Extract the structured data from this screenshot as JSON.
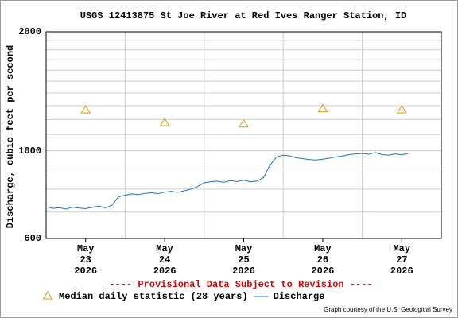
{
  "chart_data": {
    "type": "line",
    "title": "USGS 12413875 St Joe River at Red Ives Ranger Station, ID",
    "ylabel": "Discharge, cubic feet per second",
    "note": "---- Provisional Data Subject to Revision ----",
    "credit": "Graph courtesy of the U.S. Geological Survey",
    "log_y": true,
    "grid": true,
    "ylim": [
      600,
      2000
    ],
    "yticks": [
      600,
      1000,
      2000
    ],
    "y_minor_ticks": [
      700,
      800,
      900,
      1100,
      1200,
      1300,
      1400,
      1500,
      1600,
      1700,
      1800,
      1900
    ],
    "xlim": [
      "2026-05-23T00:00",
      "2026-05-28T00:00"
    ],
    "xticks": [
      {
        "value": "2026-05-23T12:00",
        "label": [
          "May",
          "23",
          "2026"
        ]
      },
      {
        "value": "2026-05-24T12:00",
        "label": [
          "May",
          "24",
          "2026"
        ]
      },
      {
        "value": "2026-05-25T12:00",
        "label": [
          "May",
          "25",
          "2026"
        ]
      },
      {
        "value": "2026-05-26T12:00",
        "label": [
          "May",
          "26",
          "2026"
        ]
      },
      {
        "value": "2026-05-27T12:00",
        "label": [
          "May",
          "27",
          "2026"
        ]
      }
    ],
    "x_grid": [
      "2026-05-24T00:00",
      "2026-05-25T00:00",
      "2026-05-26T00:00",
      "2026-05-27T00:00"
    ],
    "series": [
      {
        "name": "Median daily statistic (28 years)",
        "color": "#e69800",
        "marker": "triangle",
        "x": [
          "2026-05-23T12:00",
          "2026-05-24T12:00",
          "2026-05-25T12:00",
          "2026-05-26T12:00",
          "2026-05-27T12:00"
        ],
        "values": [
          1270,
          1180,
          1170,
          1280,
          1270
        ]
      },
      {
        "name": "Discharge",
        "color": "#1f77b4",
        "marker": "line",
        "x": [
          "2026-05-23T00:00",
          "2026-05-23T02:00",
          "2026-05-23T04:00",
          "2026-05-23T06:00",
          "2026-05-23T08:00",
          "2026-05-23T10:00",
          "2026-05-23T12:00",
          "2026-05-23T14:00",
          "2026-05-23T16:00",
          "2026-05-23T18:00",
          "2026-05-23T20:00",
          "2026-05-23T22:00",
          "2026-05-24T00:00",
          "2026-05-24T02:00",
          "2026-05-24T04:00",
          "2026-05-24T06:00",
          "2026-05-24T08:00",
          "2026-05-24T10:00",
          "2026-05-24T12:00",
          "2026-05-24T14:00",
          "2026-05-24T16:00",
          "2026-05-24T18:00",
          "2026-05-24T20:00",
          "2026-05-24T22:00",
          "2026-05-25T00:00",
          "2026-05-25T02:00",
          "2026-05-25T04:00",
          "2026-05-25T06:00",
          "2026-05-25T08:00",
          "2026-05-25T10:00",
          "2026-05-25T12:00",
          "2026-05-25T14:00",
          "2026-05-25T16:00",
          "2026-05-25T18:00",
          "2026-05-25T20:00",
          "2026-05-25T22:00",
          "2026-05-26T00:00",
          "2026-05-26T02:00",
          "2026-05-26T04:00",
          "2026-05-26T06:00",
          "2026-05-26T08:00",
          "2026-05-26T10:00",
          "2026-05-26T12:00",
          "2026-05-26T14:00",
          "2026-05-26T16:00",
          "2026-05-26T18:00",
          "2026-05-26T20:00",
          "2026-05-26T22:00",
          "2026-05-27T00:00",
          "2026-05-27T02:00",
          "2026-05-27T04:00",
          "2026-05-27T06:00",
          "2026-05-27T08:00",
          "2026-05-27T10:00",
          "2026-05-27T12:00",
          "2026-05-27T14:00"
        ],
        "values": [
          722,
          715,
          718,
          712,
          720,
          716,
          714,
          719,
          725,
          717,
          728,
          765,
          772,
          778,
          775,
          780,
          783,
          779,
          786,
          790,
          785,
          792,
          800,
          812,
          830,
          835,
          838,
          832,
          840,
          836,
          842,
          835,
          838,
          855,
          920,
          965,
          975,
          970,
          960,
          955,
          950,
          948,
          952,
          958,
          965,
          970,
          978,
          982,
          985,
          980,
          990,
          978,
          975,
          982,
          977,
          985
        ]
      }
    ]
  }
}
